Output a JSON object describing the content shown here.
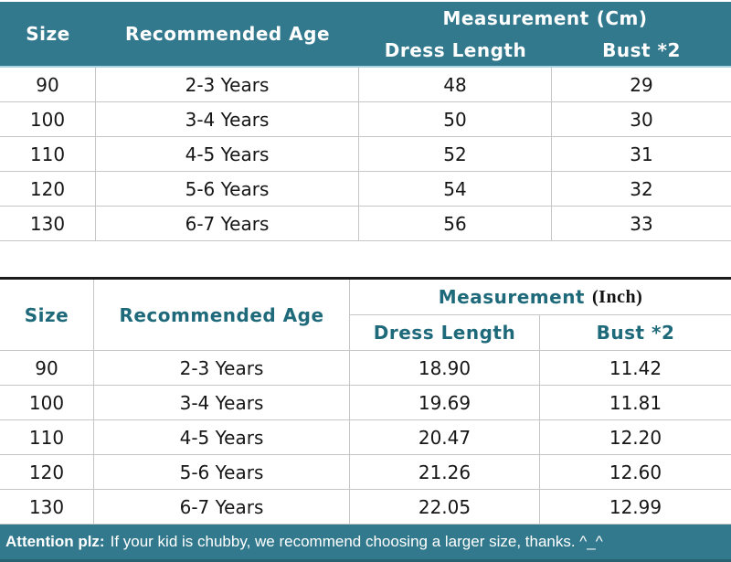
{
  "colors": {
    "header_teal_bg": "#32798e",
    "header_teal_text": "#1f6a7a",
    "footer_teal_bg": "#32798e",
    "body_text": "#161616",
    "grid_line": "#c6c6c6",
    "divider_black": "#1c1c1c",
    "header_underline_lightblue": "#aad4e0"
  },
  "chart_data": [
    {
      "type": "table",
      "measurement_label": "Measurement",
      "unit_label": "(Cm)",
      "columns": [
        "Size",
        "Recommended Age",
        "Dress Length",
        "Bust *2"
      ],
      "rows": [
        [
          "90",
          "2-3 Years",
          "48",
          "29"
        ],
        [
          "100",
          "3-4 Years",
          "50",
          "30"
        ],
        [
          "110",
          "4-5 Years",
          "52",
          "31"
        ],
        [
          "120",
          "5-6 Years",
          "54",
          "32"
        ],
        [
          "130",
          "6-7 Years",
          "56",
          "33"
        ]
      ]
    },
    {
      "type": "table",
      "measurement_label": "Measurement",
      "unit_label": "(Inch)",
      "columns": [
        "Size",
        "Recommended Age",
        "Dress Length",
        "Bust *2"
      ],
      "rows": [
        [
          "90",
          "2-3 Years",
          "18.90",
          "11.42"
        ],
        [
          "100",
          "3-4 Years",
          "19.69",
          "11.81"
        ],
        [
          "110",
          "4-5 Years",
          "20.47",
          "12.20"
        ],
        [
          "120",
          "5-6 Years",
          "21.26",
          "12.60"
        ],
        [
          "130",
          "6-7 Years",
          "22.05",
          "12.99"
        ]
      ]
    }
  ],
  "footer": {
    "bold_label": "Attention plz:",
    "message": "If your kid is chubby, we recommend choosing a larger size, thanks. ^_^"
  }
}
